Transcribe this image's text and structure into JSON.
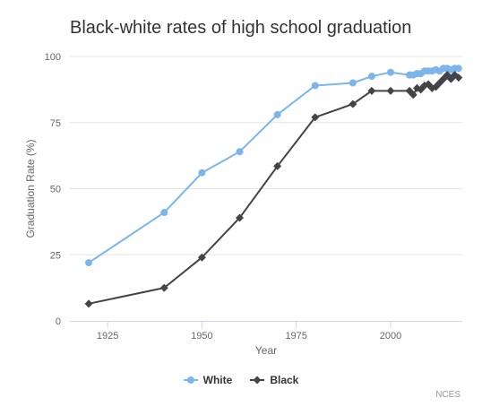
{
  "chart_data": {
    "type": "line",
    "title": "Black-white rates of high school graduation",
    "xlabel": "Year",
    "ylabel": "Graduation Rate (%)",
    "xlim": [
      1915,
      2019
    ],
    "ylim": [
      0,
      100
    ],
    "x_ticks": [
      "1925",
      "1950",
      "1975",
      "2000"
    ],
    "y_ticks": [
      "0",
      "25",
      "50",
      "75",
      "100"
    ],
    "grid": "horizontal",
    "legend_position": "bottom",
    "series": [
      {
        "name": "White",
        "color": "#7cb5ec",
        "marker": "circle",
        "x": [
          1920,
          1940,
          1950,
          1960,
          1970,
          1980,
          1990,
          1995,
          2000,
          2005,
          2006,
          2007,
          2008,
          2009,
          2010,
          2011,
          2012,
          2013,
          2014,
          2015,
          2016,
          2017,
          2018
        ],
        "y": [
          22,
          41,
          56,
          64,
          78,
          89,
          90,
          92.5,
          94,
          93,
          93,
          93.5,
          93.5,
          94.5,
          94.5,
          94.5,
          95,
          94.5,
          95.5,
          95.5,
          95,
          95.5,
          95.5
        ]
      },
      {
        "name": "Black",
        "color": "#434348",
        "marker": "diamond",
        "x": [
          1920,
          1940,
          1950,
          1960,
          1970,
          1980,
          1990,
          1995,
          2000,
          2005,
          2006,
          2007,
          2008,
          2009,
          2010,
          2011,
          2012,
          2013,
          2014,
          2015,
          2016,
          2017,
          2018
        ],
        "y": [
          6.5,
          12.5,
          24,
          39,
          58.5,
          77,
          82,
          87,
          87,
          87,
          85.5,
          88,
          87.5,
          89,
          89.5,
          88,
          88.5,
          90,
          91.5,
          93,
          91.5,
          93,
          92
        ]
      }
    ],
    "credits": "NCES"
  }
}
